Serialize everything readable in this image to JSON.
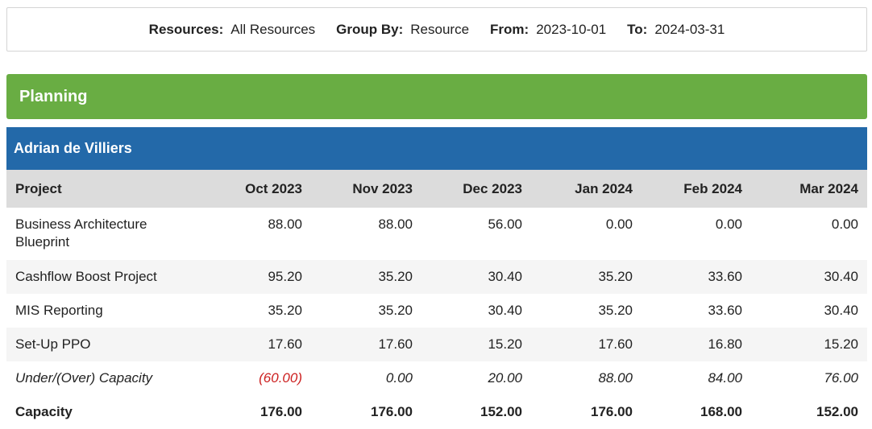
{
  "filters": {
    "resources": {
      "label": "Resources:",
      "value": "All Resources"
    },
    "group_by": {
      "label": "Group By:",
      "value": "Resource"
    },
    "from": {
      "label": "From:",
      "value": "2023-10-01"
    },
    "to": {
      "label": "To:",
      "value": "2024-03-31"
    }
  },
  "section_title": "Planning",
  "resource_name": "Adrian de Villiers",
  "table": {
    "headers": [
      "Project",
      "Oct 2023",
      "Nov 2023",
      "Dec 2023",
      "Jan 2024",
      "Feb 2024",
      "Mar 2024"
    ],
    "rows": [
      {
        "project": "Business Architecture Blueprint",
        "values": [
          "88.00",
          "88.00",
          "56.00",
          "0.00",
          "0.00",
          "0.00"
        ]
      },
      {
        "project": "Cashflow Boost Project",
        "values": [
          "95.20",
          "35.20",
          "30.40",
          "35.20",
          "33.60",
          "30.40"
        ]
      },
      {
        "project": "MIS Reporting",
        "values": [
          "35.20",
          "35.20",
          "30.40",
          "35.20",
          "33.60",
          "30.40"
        ]
      },
      {
        "project": "Set-Up PPO",
        "values": [
          "17.60",
          "17.60",
          "15.20",
          "17.60",
          "16.80",
          "15.20"
        ]
      }
    ],
    "under_over": {
      "label": "Under/(Over) Capacity",
      "values": [
        "(60.00)",
        "0.00",
        "20.00",
        "88.00",
        "84.00",
        "76.00"
      ]
    },
    "capacity": {
      "label": "Capacity",
      "values": [
        "176.00",
        "176.00",
        "152.00",
        "176.00",
        "168.00",
        "152.00"
      ]
    }
  },
  "colors": {
    "planning_bar": "#69ad43",
    "resource_bar": "#2369a9",
    "negative_value": "#cc1f1f"
  }
}
